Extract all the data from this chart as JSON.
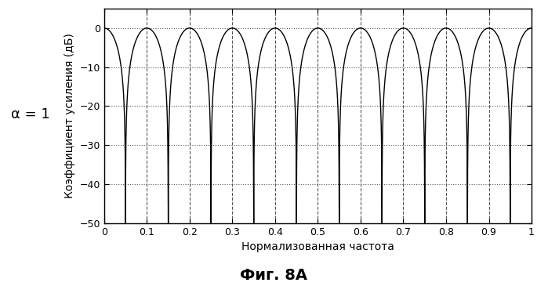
{
  "title": "Фиг. 8А",
  "xlabel": "Нормализованная частота",
  "ylabel": "Коэффициент усиления (дБ)",
  "alpha_label": "α = 1",
  "alpha_value": 1.0,
  "N": 10,
  "ylim": [
    -50,
    5
  ],
  "xlim": [
    0,
    1
  ],
  "yticks": [
    0,
    -10,
    -20,
    -30,
    -40,
    -50
  ],
  "xticks": [
    0,
    0.1,
    0.2,
    0.3,
    0.4,
    0.5,
    0.6,
    0.7,
    0.8,
    0.9,
    1.0
  ],
  "xtick_labels": [
    "0",
    "0.1",
    "0.2",
    "0.3",
    "0.4",
    "0.5",
    "0.6",
    "0.7",
    "0.8",
    "0.9",
    "1"
  ],
  "line_color": "#000000",
  "hgrid_color": "#555555",
  "vgrid_color": "#555555",
  "background_color": "#ffffff",
  "title_fontsize": 14,
  "label_fontsize": 10,
  "tick_fontsize": 9,
  "dpi": 100,
  "figsize": [
    6.99,
    3.65
  ]
}
